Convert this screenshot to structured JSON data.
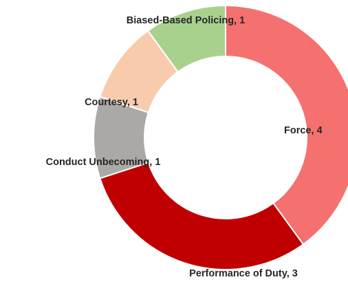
{
  "chart_data": {
    "type": "donut",
    "categories": [
      "Force",
      "Performance of Duty",
      "Conduct Unbecoming",
      "Courtesy",
      "Biased-Based Policing"
    ],
    "values": [
      4,
      3,
      1,
      1,
      1
    ],
    "colors": [
      "#f4716f",
      "#c00000",
      "#aba8a6",
      "#f8cbad",
      "#a9d18e"
    ]
  }
}
